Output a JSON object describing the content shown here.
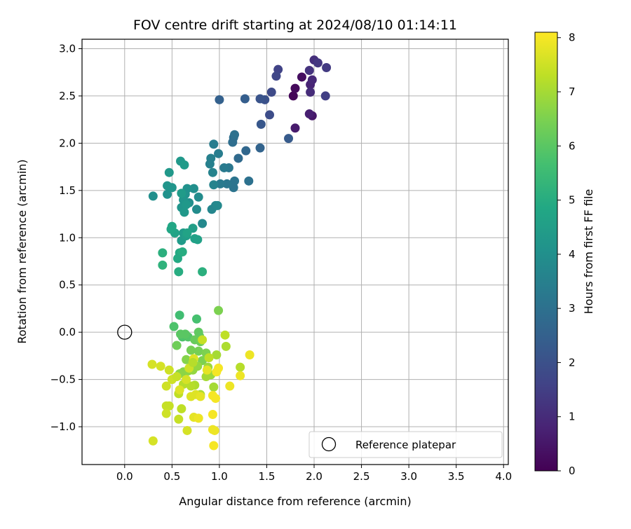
{
  "chart_data": {
    "type": "scatter",
    "title": "FOV centre drift starting at 2024/08/10 01:14:11",
    "xlabel": "Angular distance from reference (arcmin)",
    "ylabel": "Rotation from reference (arcmin)",
    "xlim": [
      -0.45,
      4.05
    ],
    "ylim": [
      -1.4,
      3.1
    ],
    "xticks": [
      "0.0",
      "0.5",
      "1.0",
      "1.5",
      "2.0",
      "2.5",
      "3.0",
      "3.5",
      "4.0"
    ],
    "yticks": [
      "−1.0",
      "−0.5",
      "0.0",
      "0.5",
      "1.0",
      "1.5",
      "2.0",
      "2.5",
      "3.0"
    ],
    "grid": true,
    "legend": {
      "placement": "lower-right",
      "label": "Reference platepar"
    },
    "reference_point": {
      "x": 0.0,
      "y": 0.0
    },
    "colorbar": {
      "label": "Hours from first FF file",
      "min": 0,
      "max": 8.1,
      "ticks": [
        "0",
        "1",
        "2",
        "3",
        "4",
        "5",
        "6",
        "7",
        "8"
      ],
      "colormap": "viridis"
    },
    "points": [
      [
        1.78,
        2.5,
        0.1
      ],
      [
        1.8,
        2.58,
        0.2
      ],
      [
        1.87,
        2.7,
        0.3
      ],
      [
        1.98,
        2.29,
        0.5
      ],
      [
        1.8,
        2.16,
        0.6
      ],
      [
        1.95,
        2.31,
        0.7
      ],
      [
        1.96,
        2.62,
        0.8
      ],
      [
        1.98,
        2.67,
        0.9
      ],
      [
        1.96,
        2.54,
        1.0
      ],
      [
        2.0,
        2.88,
        1.1
      ],
      [
        1.95,
        2.77,
        1.2
      ],
      [
        2.04,
        2.85,
        1.3
      ],
      [
        2.13,
        2.8,
        1.4
      ],
      [
        2.12,
        2.5,
        1.5
      ],
      [
        1.62,
        2.78,
        1.6
      ],
      [
        1.6,
        2.71,
        1.7
      ],
      [
        1.55,
        2.54,
        1.8
      ],
      [
        1.53,
        2.3,
        1.9
      ],
      [
        1.48,
        2.46,
        2.0
      ],
      [
        1.43,
        2.47,
        2.1
      ],
      [
        1.44,
        2.2,
        2.2
      ],
      [
        1.73,
        2.05,
        2.3
      ],
      [
        1.27,
        2.47,
        2.4
      ],
      [
        1.0,
        2.46,
        2.5
      ],
      [
        1.43,
        1.95,
        2.6
      ],
      [
        1.28,
        1.92,
        2.7
      ],
      [
        1.2,
        1.84,
        2.8
      ],
      [
        1.15,
        2.06,
        2.9
      ],
      [
        1.14,
        2.01,
        2.9
      ],
      [
        1.16,
        2.09,
        3.0
      ],
      [
        1.31,
        1.6,
        3.0
      ],
      [
        1.16,
        1.6,
        3.1
      ],
      [
        1.15,
        1.53,
        3.1
      ],
      [
        1.08,
        1.57,
        3.2
      ],
      [
        1.1,
        1.74,
        3.2
      ],
      [
        1.05,
        1.74,
        3.3
      ],
      [
        1.01,
        1.57,
        3.3
      ],
      [
        0.94,
        1.99,
        3.4
      ],
      [
        0.99,
        1.89,
        3.4
      ],
      [
        0.91,
        1.84,
        3.5
      ],
      [
        0.9,
        1.78,
        3.5
      ],
      [
        0.93,
        1.69,
        3.6
      ],
      [
        0.94,
        1.56,
        3.6
      ],
      [
        0.92,
        1.3,
        3.7
      ],
      [
        0.96,
        1.34,
        3.7
      ],
      [
        0.98,
        1.34,
        3.8
      ],
      [
        0.82,
        1.15,
        3.8
      ],
      [
        0.78,
        1.43,
        3.9
      ],
      [
        0.76,
        1.3,
        3.9
      ],
      [
        0.73,
        1.52,
        4.0
      ],
      [
        0.68,
        1.37,
        4.0
      ],
      [
        0.66,
        1.52,
        4.1
      ],
      [
        0.64,
        1.46,
        4.1
      ],
      [
        0.62,
        1.4,
        4.2
      ],
      [
        0.6,
        1.32,
        4.2
      ],
      [
        0.63,
        1.27,
        4.3
      ],
      [
        0.65,
        1.35,
        4.3
      ],
      [
        0.62,
        1.05,
        4.4
      ],
      [
        0.6,
        0.97,
        4.4
      ],
      [
        0.65,
        1.02,
        4.5
      ],
      [
        0.72,
        1.1,
        4.5
      ],
      [
        0.74,
        0.99,
        4.6
      ],
      [
        0.77,
        0.98,
        4.6
      ],
      [
        0.66,
        1.05,
        4.7
      ],
      [
        0.53,
        1.05,
        4.7
      ],
      [
        0.5,
        1.12,
        4.8
      ],
      [
        0.49,
        1.09,
        4.8
      ],
      [
        0.56,
        0.78,
        4.9
      ],
      [
        0.58,
        0.84,
        4.9
      ],
      [
        0.61,
        0.85,
        5.0
      ],
      [
        0.57,
        0.64,
        5.0
      ],
      [
        0.82,
        0.64,
        5.1
      ],
      [
        0.4,
        0.84,
        5.1
      ],
      [
        0.4,
        0.71,
        5.2
      ],
      [
        0.3,
        1.44,
        4.0
      ],
      [
        0.45,
        1.46,
        4.1
      ],
      [
        0.45,
        1.55,
        4.2
      ],
      [
        0.5,
        1.53,
        4.2
      ],
      [
        0.47,
        1.69,
        4.3
      ],
      [
        0.59,
        1.81,
        4.3
      ],
      [
        0.63,
        1.77,
        4.4
      ],
      [
        0.6,
        1.47,
        4.4
      ],
      [
        0.58,
        0.18,
        5.6
      ],
      [
        0.76,
        0.14,
        5.7
      ],
      [
        0.52,
        0.06,
        5.8
      ],
      [
        0.61,
        -0.05,
        5.8
      ],
      [
        0.67,
        -0.05,
        5.9
      ],
      [
        0.59,
        -0.02,
        6.0
      ],
      [
        0.64,
        -0.02,
        6.0
      ],
      [
        0.78,
        0.0,
        6.1
      ],
      [
        0.79,
        -0.04,
        6.1
      ],
      [
        0.74,
        -0.08,
        6.2
      ],
      [
        0.8,
        -0.1,
        6.3
      ],
      [
        0.55,
        -0.14,
        6.3
      ],
      [
        0.7,
        -0.19,
        6.4
      ],
      [
        0.78,
        -0.2,
        6.4
      ],
      [
        0.86,
        -0.22,
        6.5
      ],
      [
        0.82,
        -0.3,
        6.5
      ],
      [
        0.65,
        -0.29,
        6.6
      ],
      [
        0.62,
        -0.42,
        6.6
      ],
      [
        0.58,
        -0.44,
        6.7
      ],
      [
        0.67,
        -0.41,
        6.7
      ],
      [
        0.72,
        -0.4,
        6.8
      ],
      [
        0.77,
        -0.36,
        6.8
      ],
      [
        0.88,
        -0.37,
        6.9
      ],
      [
        0.91,
        -0.45,
        6.9
      ],
      [
        0.94,
        -0.58,
        7.0
      ],
      [
        0.86,
        -0.47,
        7.0
      ],
      [
        0.8,
        -0.66,
        7.1
      ],
      [
        0.74,
        -0.56,
        7.1
      ],
      [
        0.7,
        -0.57,
        7.2
      ],
      [
        0.62,
        -0.55,
        7.2
      ],
      [
        0.57,
        -0.65,
        7.3
      ],
      [
        0.6,
        -0.81,
        7.3
      ],
      [
        0.57,
        -0.92,
        7.4
      ],
      [
        0.47,
        -0.78,
        7.4
      ],
      [
        0.44,
        -0.78,
        7.4
      ],
      [
        0.44,
        -0.86,
        7.5
      ],
      [
        0.44,
        -0.57,
        7.5
      ],
      [
        0.47,
        -0.4,
        7.5
      ],
      [
        0.5,
        -0.5,
        7.5
      ],
      [
        0.38,
        -0.36,
        7.6
      ],
      [
        0.29,
        -0.34,
        7.6
      ],
      [
        0.3,
        -1.15,
        7.6
      ],
      [
        0.66,
        -1.04,
        7.6
      ],
      [
        0.7,
        -0.68,
        7.7
      ],
      [
        0.75,
        -0.66,
        7.7
      ],
      [
        0.8,
        -0.68,
        7.8
      ],
      [
        0.73,
        -0.9,
        7.8
      ],
      [
        0.78,
        -0.91,
        7.9
      ],
      [
        0.93,
        -1.03,
        7.9
      ],
      [
        0.95,
        -1.04,
        7.9
      ],
      [
        0.94,
        -1.2,
        8.0
      ],
      [
        0.93,
        -0.87,
        8.0
      ],
      [
        0.96,
        -0.7,
        8.0
      ],
      [
        0.93,
        -0.67,
        8.0
      ],
      [
        0.97,
        -0.42,
        8.0
      ],
      [
        0.99,
        -0.38,
        8.0
      ],
      [
        1.06,
        -0.03,
        7.3
      ],
      [
        1.07,
        -0.15,
        7.1
      ],
      [
        0.99,
        0.23,
        6.5
      ],
      [
        0.97,
        -0.24,
        7.0
      ],
      [
        1.22,
        -0.37,
        7.2
      ],
      [
        1.22,
        -0.46,
        7.9
      ],
      [
        1.11,
        -0.57,
        7.9
      ],
      [
        1.32,
        -0.24,
        7.9
      ],
      [
        0.89,
        -0.27,
        7.3
      ],
      [
        0.73,
        -0.28,
        7.7
      ],
      [
        0.82,
        -0.08,
        7.4
      ],
      [
        0.58,
        -0.61,
        7.7
      ],
      [
        0.65,
        -0.5,
        7.6
      ],
      [
        0.87,
        -0.4,
        7.8
      ],
      [
        0.68,
        -0.38,
        7.5
      ],
      [
        0.55,
        -0.47,
        7.4
      ],
      [
        0.72,
        -0.32,
        7.2
      ]
    ]
  }
}
